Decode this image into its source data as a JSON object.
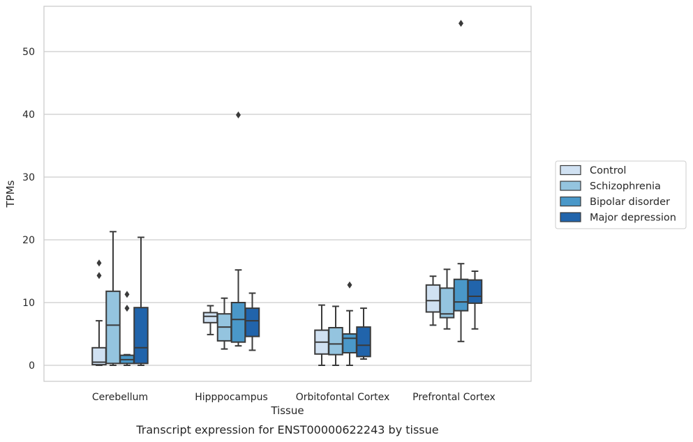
{
  "chart_data": {
    "type": "box",
    "caption": "Transcript expression for ENST00000622243 by tissue",
    "xlabel": "Tissue",
    "ylabel": "TPMs",
    "ylim": [
      -2.5,
      57
    ],
    "yticks": [
      0,
      10,
      20,
      30,
      40,
      50
    ],
    "grid": "horizontal",
    "legend_position": "right",
    "categories": [
      "Cerebellum",
      "Hipppocampus",
      "Orbitofontal Cortex",
      "Prefrontal Cortex"
    ],
    "series": [
      {
        "name": "Control",
        "color": "#d0e1f2",
        "boxes": [
          {
            "whislo": 0.0,
            "q1": 0.1,
            "med": 0.5,
            "q3": 2.8,
            "whishi": 7.1,
            "fliers": [
              14.3,
              16.3
            ]
          },
          {
            "whislo": 4.9,
            "q1": 6.8,
            "med": 7.8,
            "q3": 8.4,
            "whishi": 9.5,
            "fliers": []
          },
          {
            "whislo": 0.0,
            "q1": 1.8,
            "med": 3.7,
            "q3": 5.6,
            "whishi": 9.6,
            "fliers": []
          },
          {
            "whislo": 6.4,
            "q1": 8.5,
            "med": 10.3,
            "q3": 12.8,
            "whishi": 14.2,
            "fliers": []
          }
        ]
      },
      {
        "name": "Schizophrenia",
        "color": "#94c4df",
        "boxes": [
          {
            "whislo": 0.0,
            "q1": 0.3,
            "med": 6.4,
            "q3": 11.8,
            "whishi": 21.3,
            "fliers": []
          },
          {
            "whislo": 2.6,
            "q1": 3.9,
            "med": 6.1,
            "q3": 8.2,
            "whishi": 10.7,
            "fliers": []
          },
          {
            "whislo": 0.0,
            "q1": 1.7,
            "med": 3.4,
            "q3": 6.0,
            "whishi": 9.4,
            "fliers": []
          },
          {
            "whislo": 5.8,
            "q1": 7.6,
            "med": 8.2,
            "q3": 12.3,
            "whishi": 15.3,
            "fliers": []
          }
        ]
      },
      {
        "name": "Bipolar disorder",
        "color": "#4a98c9",
        "boxes": [
          {
            "whislo": 0.0,
            "q1": 0.3,
            "med": 0.9,
            "q3": 1.6,
            "whishi": 1.7,
            "fliers": [
              9.1,
              11.3
            ]
          },
          {
            "whislo": 3.1,
            "q1": 3.7,
            "med": 7.3,
            "q3": 10.0,
            "whishi": 15.2,
            "fliers": [
              39.9
            ]
          },
          {
            "whislo": 0.0,
            "q1": 2.0,
            "med": 4.3,
            "q3": 5.0,
            "whishi": 8.7,
            "fliers": [
              12.8
            ]
          },
          {
            "whislo": 3.8,
            "q1": 8.7,
            "med": 10.1,
            "q3": 13.7,
            "whishi": 16.2,
            "fliers": [
              54.5
            ]
          }
        ]
      },
      {
        "name": "Major depression",
        "color": "#2164ab",
        "boxes": [
          {
            "whislo": 0.0,
            "q1": 0.3,
            "med": 2.8,
            "q3": 9.2,
            "whishi": 20.4,
            "fliers": []
          },
          {
            "whislo": 2.4,
            "q1": 4.6,
            "med": 7.1,
            "q3": 9.1,
            "whishi": 11.5,
            "fliers": []
          },
          {
            "whislo": 1.0,
            "q1": 1.4,
            "med": 3.2,
            "q3": 6.1,
            "whishi": 9.1,
            "fliers": []
          },
          {
            "whislo": 5.8,
            "q1": 9.9,
            "med": 11.0,
            "q3": 13.6,
            "whishi": 15.0,
            "fliers": []
          }
        ]
      }
    ]
  }
}
